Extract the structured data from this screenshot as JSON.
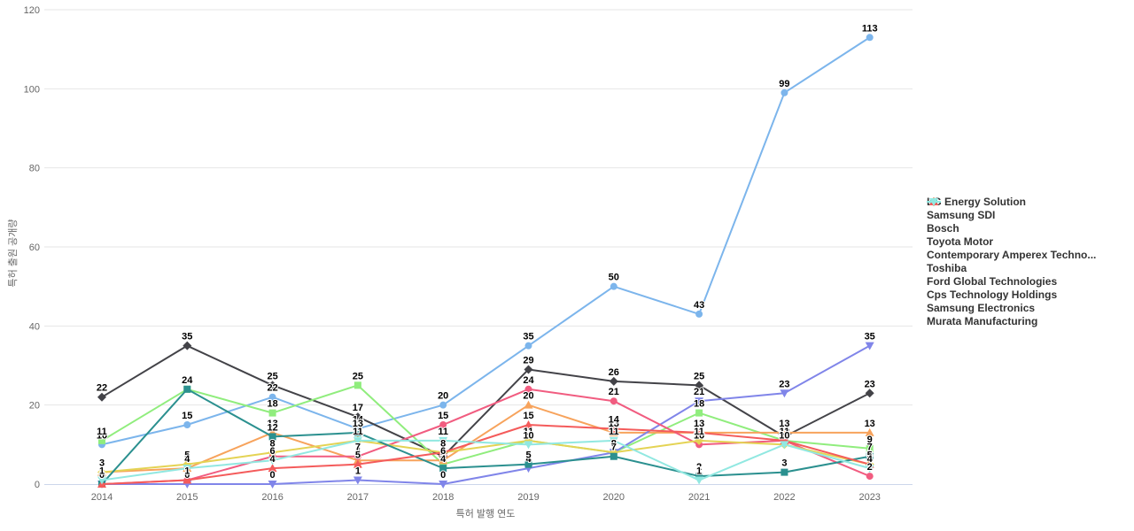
{
  "chart_data": {
    "type": "line",
    "xlabel": "특허 발행 연도",
    "ylabel": "특허 출원 공개량",
    "categories": [
      "2014",
      "2015",
      "2016",
      "2017",
      "2018",
      "2019",
      "2020",
      "2021",
      "2022",
      "2023"
    ],
    "ylim": [
      0,
      120
    ],
    "yticks": [
      0,
      20,
      40,
      60,
      80,
      100,
      120
    ],
    "grid": true,
    "legend_position": "right",
    "data_labels": true,
    "series": [
      {
        "name": "LG Energy Solution",
        "color": "#7cb5ec",
        "marker": "circle",
        "values": [
          10,
          15,
          22,
          14,
          20,
          35,
          50,
          43,
          99,
          113
        ]
      },
      {
        "name": "Samsung SDI",
        "color": "#434348",
        "marker": "diamond",
        "values": [
          22,
          35,
          25,
          17,
          7,
          29,
          26,
          25,
          12,
          23
        ]
      },
      {
        "name": "Bosch",
        "color": "#90ed7d",
        "marker": "square",
        "values": [
          11,
          24,
          18,
          25,
          5,
          11,
          8,
          18,
          11,
          9
        ]
      },
      {
        "name": "Toyota Motor",
        "color": "#f7a35c",
        "marker": "triangle",
        "values": [
          3,
          4,
          13,
          6,
          6,
          20,
          13,
          13,
          13,
          13
        ]
      },
      {
        "name": "Contemporary Amperex Techno...",
        "color": "#8085e9",
        "marker": "triangle-down",
        "values": [
          0,
          0,
          0,
          1,
          0,
          4,
          8,
          21,
          23,
          35
        ]
      },
      {
        "name": "Toshiba",
        "color": "#f15c80",
        "marker": "circle",
        "values": [
          0,
          1,
          7,
          7,
          15,
          24,
          21,
          10,
          11,
          2
        ]
      },
      {
        "name": "Ford Global Technologies",
        "color": "#e4d354",
        "marker": "diamond",
        "values": [
          3,
          5,
          8,
          11,
          8,
          11,
          8,
          11,
          10,
          5
        ]
      },
      {
        "name": "Cps Technology Holdings",
        "color": "#2b908f",
        "marker": "square",
        "values": [
          0,
          24,
          12,
          13,
          4,
          5,
          7,
          2,
          3,
          7
        ]
      },
      {
        "name": "Samsung Electronics",
        "color": "#f45b5b",
        "marker": "triangle",
        "values": [
          0,
          1,
          4,
          5,
          8,
          15,
          14,
          13,
          11,
          5
        ]
      },
      {
        "name": "Murata Manufacturing",
        "color": "#91e8e1",
        "marker": "triangle-down",
        "values": [
          1,
          4,
          6,
          11,
          11,
          10,
          11,
          1,
          10,
          4
        ]
      }
    ],
    "colors": {
      "grid_line": "#e6e6e6",
      "axis_line": "#ccd6eb",
      "tick_label": "#666666",
      "legend_label": "#333333",
      "data_label": "#000000"
    }
  }
}
